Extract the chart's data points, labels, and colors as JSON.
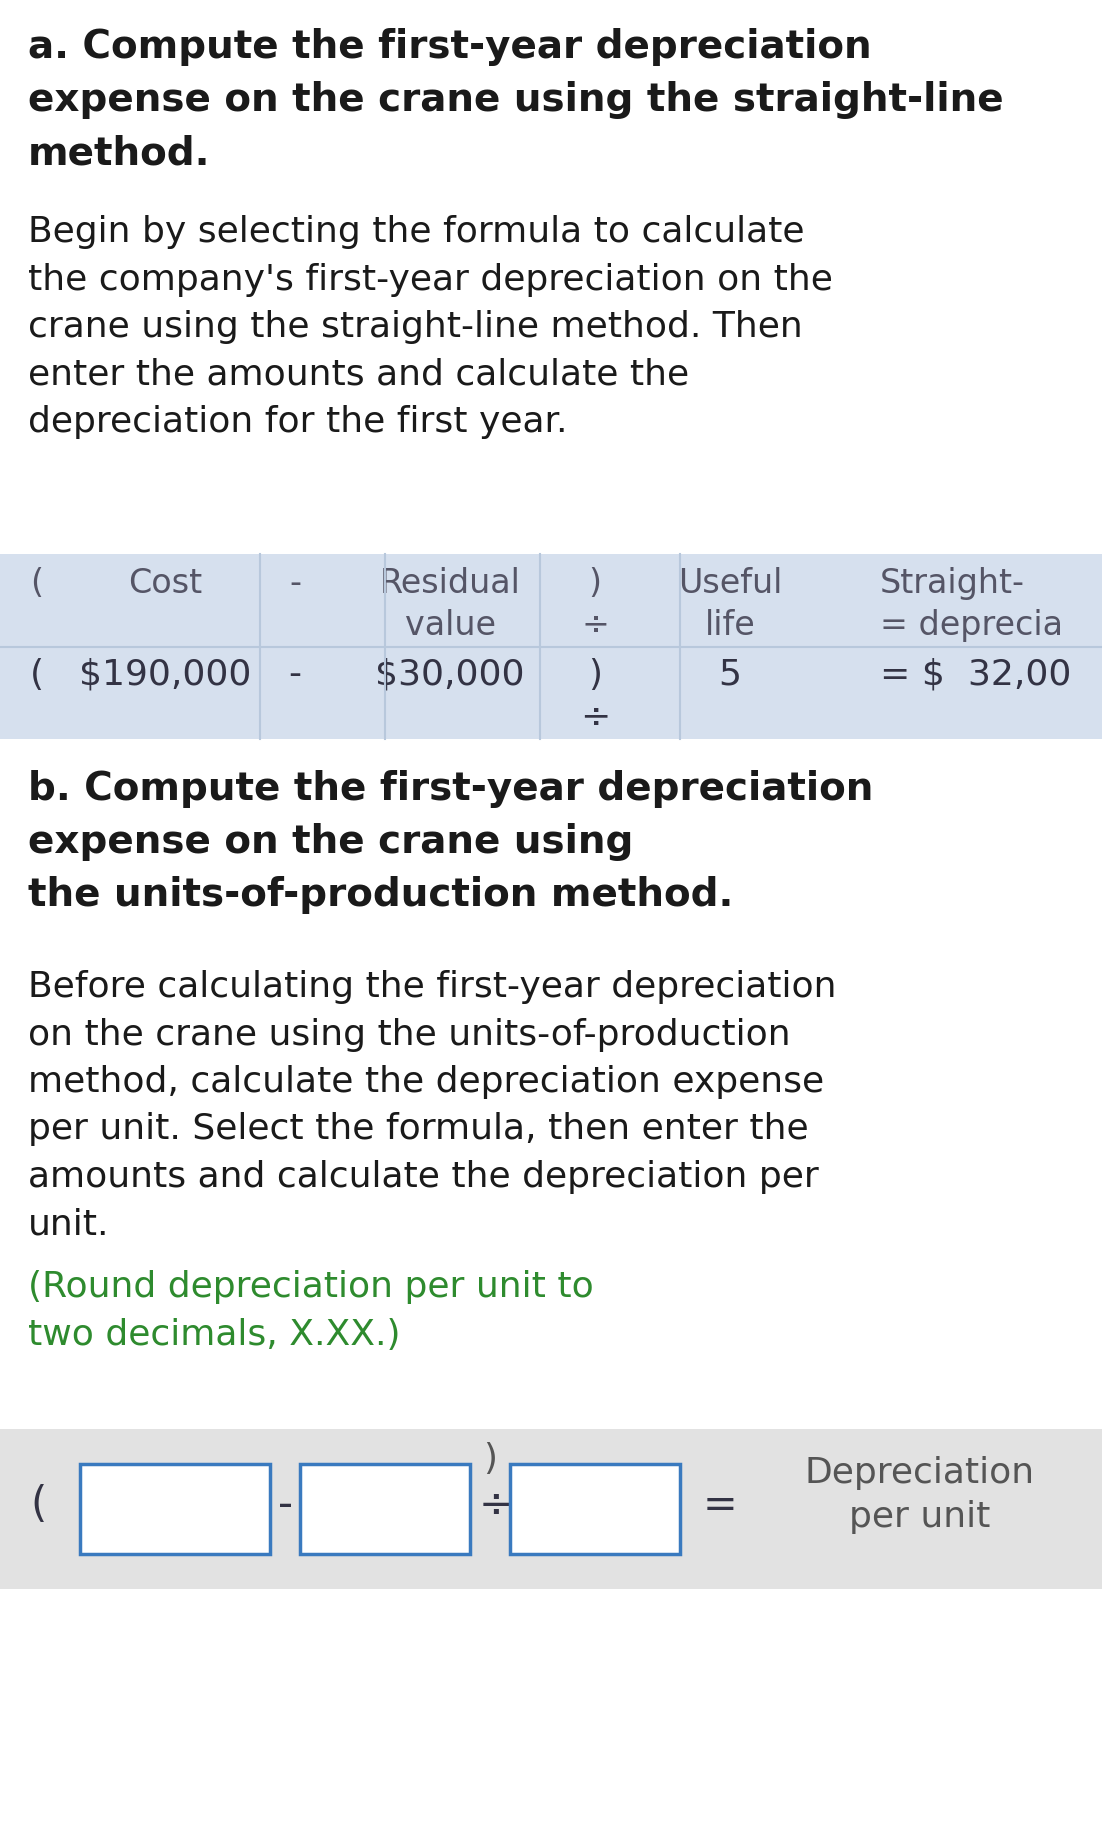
{
  "bg_color": "#ffffff",
  "table1_bg": "#d6e0ee",
  "table2_bg": "#e2e2e2",
  "box_color": "#3a7abf",
  "text_color_black": "#1a1a1a",
  "text_color_green": "#2e8b2e",
  "section_a_title": "a. Compute the first-year depreciation\nexpense on the crane using the straight-line\nmethod.",
  "section_a_body": "Begin by selecting the formula to calculate\nthe company's first-year depreciation on the\ncrane using the straight-line method. Then\nenter the amounts and calculate the\ndepreciation for the first year.",
  "section_b_title": "b. Compute the first-year depreciation\nexpense on the crane using\nthe units-of-production method.",
  "section_b_body": "Before calculating the first-year depreciation\non the crane using the units-of-production\nmethod, calculate the depreciation expense\nper unit. Select the formula, then enter the\namounts and calculate the depreciation per\nunit.",
  "section_b_green": "(Round depreciation per unit to\ntwo decimals, X.XX.)",
  "font_size_title": 28,
  "font_size_body": 26,
  "font_size_table_header": 24,
  "font_size_table_data": 26
}
